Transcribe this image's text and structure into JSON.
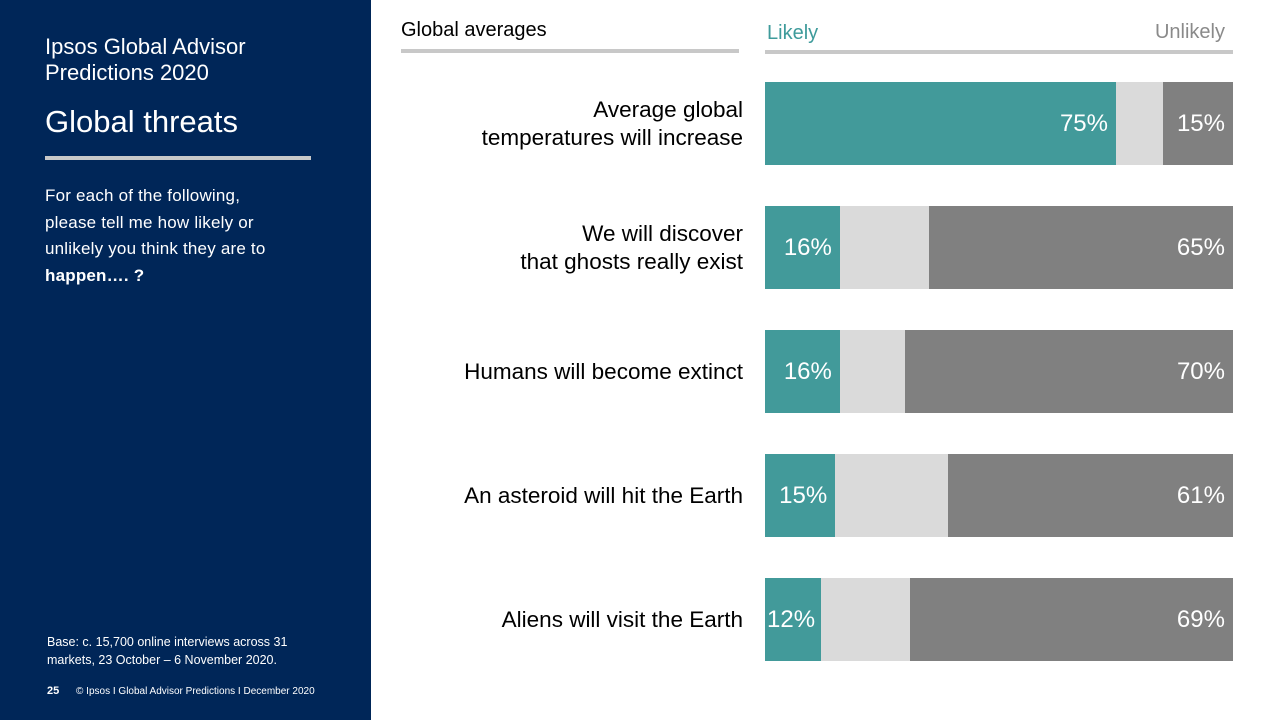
{
  "sidebar": {
    "report_line1": "Ipsos Global Advisor",
    "report_line2": "Predictions 2020",
    "title": "Global threats",
    "question_line1": "For each of the following,",
    "question_line2": "please tell me how likely or",
    "question_line3": "unlikely you think they are to",
    "question_bold": "happen…. ?",
    "base_line1": "Base: c. 15,700 online interviews across 31",
    "base_line2": "markets,  23 October – 6 November 2020.",
    "page_number": "25",
    "footer": "© Ipsos I Global Advisor Predictions I December 2020"
  },
  "header": {
    "global_averages": "Global averages",
    "likely": "Likely",
    "unlikely": "Unlikely"
  },
  "colors": {
    "sidebar_bg": "#002658",
    "likely": "#429a9a",
    "neutral": "#dadada",
    "unlikely": "#808080",
    "likely_header": "#3e9b9b",
    "unlikely_header": "#8a8a8a"
  },
  "chart_data": {
    "type": "bar",
    "orientation": "horizontal",
    "stacked": true,
    "categories": [
      [
        "Average global",
        "temperatures will increase"
      ],
      [
        "We will discover",
        "that ghosts really exist"
      ],
      [
        "Humans will become extinct"
      ],
      [
        "An asteroid will hit the Earth"
      ],
      [
        "Aliens will visit the Earth"
      ]
    ],
    "series": [
      {
        "name": "Likely",
        "values": [
          75,
          16,
          16,
          15,
          12
        ],
        "color": "#429a9a"
      },
      {
        "values": [
          10,
          19,
          14,
          24,
          19
        ],
        "color": "#dadada"
      },
      {
        "name": "Unlikely",
        "values": [
          15,
          65,
          70,
          61,
          69
        ],
        "color": "#808080"
      }
    ],
    "likely_labels": [
      "75%",
      "16%",
      "16%",
      "15%",
      "12%"
    ],
    "unlikely_labels": [
      "15%",
      "65%",
      "70%",
      "61%",
      "69%"
    ],
    "xlim": [
      0,
      100
    ]
  }
}
